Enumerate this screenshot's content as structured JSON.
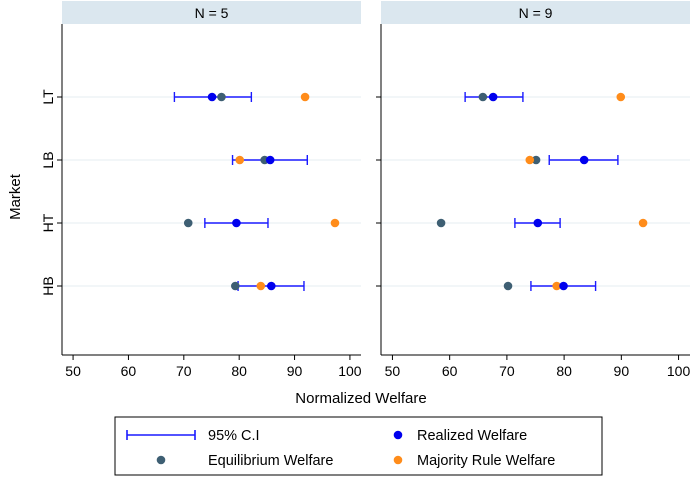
{
  "chart_data": {
    "type": "scatter",
    "ylabel": "Market",
    "xlabel": "Normalized Welfare",
    "xlim": [
      48,
      102
    ],
    "x_ticks": [
      50,
      60,
      70,
      80,
      90,
      100
    ],
    "categories": [
      "LT",
      "LB",
      "HT",
      "HB"
    ],
    "grid": "horizontal",
    "legend_position": "bottom",
    "legend": {
      "ci": "95% C.I",
      "realized": "Realized Welfare",
      "equilibrium": "Equilibrium Welfare",
      "majority": "Majority Rule Welfare"
    },
    "colors": {
      "ci": "#1a1aff",
      "realized": "#0000ee",
      "equilibrium": "#3e5f73",
      "majority": "#ff8c1a",
      "panel_header": "#dbe7ef",
      "grid": "#e6edf2"
    },
    "panels": [
      {
        "title": "N = 5",
        "rows": [
          {
            "market": "LT",
            "realized": 75.1,
            "ci_low": 68.3,
            "ci_high": 82.2,
            "equilibrium": 76.8,
            "majority": 91.9
          },
          {
            "market": "LB",
            "realized": 85.6,
            "ci_low": 78.8,
            "ci_high": 92.3,
            "equilibrium": 84.6,
            "majority": 80.1
          },
          {
            "market": "HT",
            "realized": 79.5,
            "ci_low": 73.8,
            "ci_high": 85.2,
            "equilibrium": 70.8,
            "majority": 97.3
          },
          {
            "market": "HB",
            "realized": 85.8,
            "ci_low": 79.8,
            "ci_high": 91.7,
            "equilibrium": 79.3,
            "majority": 83.9
          }
        ]
      },
      {
        "title": "N = 9",
        "rows": [
          {
            "market": "LT",
            "realized": 67.6,
            "ci_low": 62.7,
            "ci_high": 72.8,
            "equilibrium": 65.8,
            "majority": 89.9
          },
          {
            "market": "LB",
            "realized": 83.5,
            "ci_low": 77.4,
            "ci_high": 89.4,
            "equilibrium": 75.1,
            "majority": 74.0
          },
          {
            "market": "HT",
            "realized": 75.4,
            "ci_low": 71.4,
            "ci_high": 79.3,
            "equilibrium": 58.5,
            "majority": 93.8
          },
          {
            "market": "HB",
            "realized": 79.9,
            "ci_low": 74.2,
            "ci_high": 85.5,
            "equilibrium": 70.2,
            "majority": 78.7
          }
        ]
      }
    ]
  }
}
